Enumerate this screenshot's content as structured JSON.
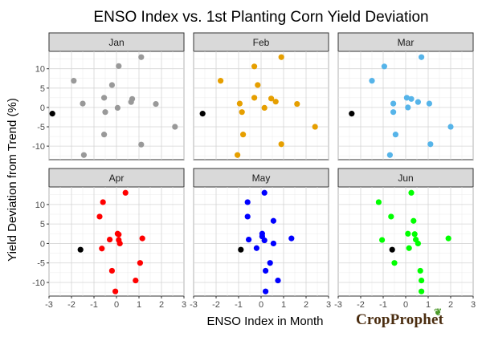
{
  "chart_data": {
    "type": "scatter",
    "title": "ENSO Index vs. 1st Planting Corn Yield Deviation",
    "xlabel": "ENSO Index in Month",
    "ylabel": "Yield Deviation from Trend (%)",
    "xlim": [
      -3,
      3
    ],
    "ylim": [
      -13.5,
      14.5
    ],
    "xticks": [
      -3,
      -2,
      -1,
      0,
      1,
      2,
      3
    ],
    "yticks": [
      -10,
      -5,
      0,
      5,
      10
    ],
    "grid": true,
    "highlight_color": "#000000",
    "facets": [
      {
        "name": "Jan",
        "color": "#999999",
        "highlight": [
          -2.85,
          -1.6
        ],
        "points": [
          [
            -1.9,
            6.9
          ],
          [
            -1.5,
            1.0
          ],
          [
            -1.45,
            -12.3
          ],
          [
            -0.55,
            2.5
          ],
          [
            -0.5,
            -1.2
          ],
          [
            -0.55,
            -7.0
          ],
          [
            -0.2,
            5.8
          ],
          [
            0.1,
            10.7
          ],
          [
            0.05,
            -0.1
          ],
          [
            0.65,
            1.4
          ],
          [
            0.7,
            2.2
          ],
          [
            1.1,
            13.0
          ],
          [
            1.1,
            -9.6
          ],
          [
            1.75,
            0.9
          ],
          [
            2.6,
            -5.0
          ]
        ]
      },
      {
        "name": "Feb",
        "color": "#E69F00",
        "highlight": [
          -2.6,
          -1.6
        ],
        "points": [
          [
            -1.8,
            6.9
          ],
          [
            -1.05,
            -12.3
          ],
          [
            -0.95,
            1.0
          ],
          [
            -0.85,
            -1.2
          ],
          [
            -0.8,
            -7.0
          ],
          [
            -0.3,
            10.6
          ],
          [
            -0.3,
            2.5
          ],
          [
            -0.15,
            5.8
          ],
          [
            0.15,
            -0.1
          ],
          [
            0.45,
            2.3
          ],
          [
            0.65,
            1.5
          ],
          [
            0.9,
            13.0
          ],
          [
            0.9,
            -9.5
          ],
          [
            1.6,
            0.9
          ],
          [
            2.4,
            -5.0
          ]
        ]
      },
      {
        "name": "Mar",
        "color": "#56B4E9",
        "highlight": [
          -2.4,
          -1.6
        ],
        "points": [
          [
            -1.5,
            6.9
          ],
          [
            -0.95,
            10.6
          ],
          [
            -0.7,
            -12.3
          ],
          [
            -0.55,
            1.0
          ],
          [
            -0.55,
            -1.2
          ],
          [
            -0.45,
            -7.0
          ],
          [
            0.05,
            2.5
          ],
          [
            0.1,
            0.0
          ],
          [
            0.25,
            2.2
          ],
          [
            0.55,
            1.4
          ],
          [
            0.7,
            13.0
          ],
          [
            1.05,
            1.0
          ],
          [
            1.1,
            -9.5
          ],
          [
            2.0,
            -5.0
          ]
        ]
      },
      {
        "name": "Apr",
        "color": "#FF0000",
        "highlight": [
          -1.6,
          -1.6
        ],
        "points": [
          [
            -0.75,
            6.9
          ],
          [
            -0.6,
            10.6
          ],
          [
            -0.65,
            -1.3
          ],
          [
            -0.3,
            1.0
          ],
          [
            -0.2,
            -7.0
          ],
          [
            -0.05,
            -12.3
          ],
          [
            0.05,
            2.5
          ],
          [
            0.1,
            0.9
          ],
          [
            0.15,
            0.0
          ],
          [
            0.1,
            2.3
          ],
          [
            0.4,
            13.0
          ],
          [
            0.85,
            -9.5
          ],
          [
            1.05,
            -5.0
          ],
          [
            1.15,
            1.3
          ]
        ]
      },
      {
        "name": "May",
        "color": "#0000FF",
        "highlight": [
          -0.9,
          -1.6
        ],
        "points": [
          [
            -0.6,
            10.6
          ],
          [
            -0.6,
            6.9
          ],
          [
            -0.55,
            1.0
          ],
          [
            -0.2,
            -1.2
          ],
          [
            0.05,
            2.5
          ],
          [
            0.05,
            1.8
          ],
          [
            0.15,
            13.0
          ],
          [
            0.15,
            0.8
          ],
          [
            0.2,
            -7.0
          ],
          [
            0.2,
            -12.3
          ],
          [
            0.4,
            -5.0
          ],
          [
            0.55,
            0.0
          ],
          [
            0.55,
            5.8
          ],
          [
            0.75,
            -9.5
          ],
          [
            1.35,
            1.3
          ]
        ]
      },
      {
        "name": "Jun",
        "color": "#00FF00",
        "highlight": [
          -0.6,
          -1.6
        ],
        "points": [
          [
            -1.2,
            10.6
          ],
          [
            -1.05,
            0.9
          ],
          [
            -0.65,
            6.9
          ],
          [
            -0.5,
            -5.0
          ],
          [
            0.1,
            2.5
          ],
          [
            0.15,
            -1.2
          ],
          [
            0.25,
            13.0
          ],
          [
            0.35,
            5.8
          ],
          [
            0.4,
            2.4
          ],
          [
            0.45,
            1.0
          ],
          [
            0.55,
            0.0
          ],
          [
            0.65,
            -7.0
          ],
          [
            0.7,
            -9.5
          ],
          [
            0.7,
            -12.3
          ],
          [
            1.9,
            1.3
          ]
        ]
      }
    ]
  },
  "logo": {
    "text": "CropProphet"
  }
}
